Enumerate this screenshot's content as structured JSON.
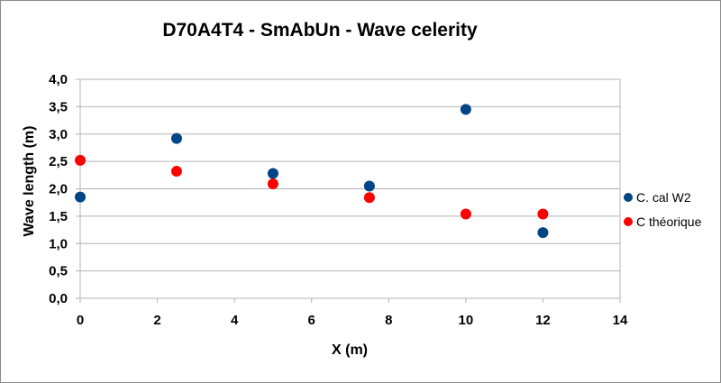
{
  "chart_data": {
    "type": "scatter",
    "title": "D70A4T4  - SmAbUn - Wave celerity",
    "xlabel": "X (m)",
    "ylabel": "Wave length (m)",
    "xlim": [
      0,
      14
    ],
    "ylim": [
      0,
      4
    ],
    "x_ticks": [
      "0",
      "2",
      "4",
      "6",
      "8",
      "10",
      "12",
      "14"
    ],
    "y_ticks": [
      "0,0",
      "0,5",
      "1,0",
      "1,5",
      "2,0",
      "2,5",
      "3,0",
      "3,5",
      "4,0"
    ],
    "grid": "horizontal",
    "legend_position": "right",
    "series": [
      {
        "name": "C. cal W2",
        "color": "#004586",
        "points": [
          {
            "x": 0,
            "y": 1.85
          },
          {
            "x": 2.5,
            "y": 2.92
          },
          {
            "x": 5,
            "y": 2.28
          },
          {
            "x": 7.5,
            "y": 2.05
          },
          {
            "x": 10,
            "y": 3.45
          },
          {
            "x": 12,
            "y": 1.2
          }
        ]
      },
      {
        "name": "C théorique",
        "color": "#ff0000",
        "points": [
          {
            "x": 0,
            "y": 2.52
          },
          {
            "x": 2.5,
            "y": 2.32
          },
          {
            "x": 5,
            "y": 2.09
          },
          {
            "x": 7.5,
            "y": 1.84
          },
          {
            "x": 10,
            "y": 1.54
          },
          {
            "x": 12,
            "y": 1.54
          }
        ]
      }
    ]
  }
}
